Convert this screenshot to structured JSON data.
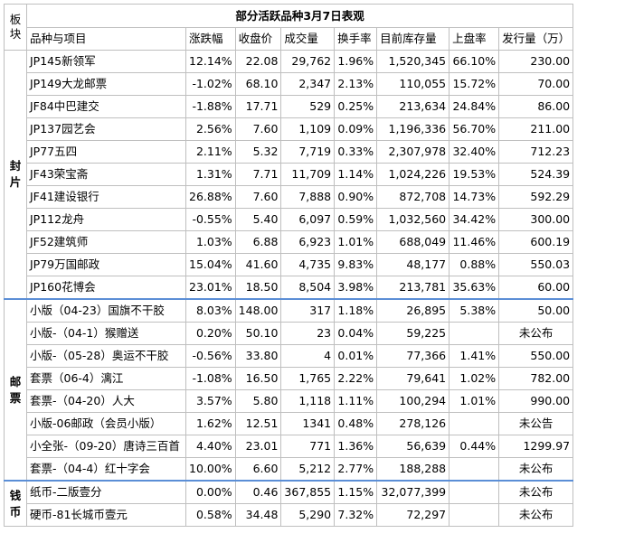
{
  "title": "部分活跃品种3月7日表观",
  "block_header": "板块",
  "headers": [
    "品种与项目",
    "涨跌幅",
    "收盘价",
    "成交量",
    "换手率",
    "目前库存量",
    "上盘率",
    "发行量（万）"
  ],
  "groups": [
    {
      "label": "封片",
      "rows": [
        {
          "name": "JP145新领军",
          "change": "12.14%",
          "dir": "pos",
          "close": "22.08",
          "volume": "29,762",
          "turnover": "1.96%",
          "stock": "1,520,345",
          "rate": "66.10%",
          "issue": "230.00"
        },
        {
          "name": "JP149大龙邮票",
          "change": "-1.02%",
          "dir": "neg",
          "close": "68.10",
          "volume": "2,347",
          "turnover": "2.13%",
          "stock": "110,055",
          "rate": "15.72%",
          "issue": "70.00"
        },
        {
          "name": "JF84中巴建交",
          "change": "-1.88%",
          "dir": "neg",
          "close": "17.71",
          "volume": "529",
          "turnover": "0.25%",
          "stock": "213,634",
          "rate": "24.84%",
          "issue": "86.00"
        },
        {
          "name": "JP137园艺会",
          "change": "2.56%",
          "dir": "pos",
          "close": "7.60",
          "volume": "1,109",
          "turnover": "0.09%",
          "stock": "1,196,336",
          "rate": "56.70%",
          "issue": "211.00"
        },
        {
          "name": "JP77五四",
          "change": "2.11%",
          "dir": "pos",
          "close": "5.32",
          "volume": "7,719",
          "turnover": "0.33%",
          "stock": "2,307,978",
          "rate": "32.40%",
          "issue": "712.23"
        },
        {
          "name": "JF43荣宝斋",
          "change": "1.31%",
          "dir": "pos",
          "close": "7.71",
          "volume": "11,709",
          "turnover": "1.14%",
          "stock": "1,024,226",
          "rate": "19.53%",
          "issue": "524.39"
        },
        {
          "name": "JF41建设银行",
          "change": "26.88%",
          "dir": "pos",
          "close": "7.60",
          "volume": "7,888",
          "turnover": "0.90%",
          "stock": "872,708",
          "rate": "14.73%",
          "issue": "592.29"
        },
        {
          "name": "JP112龙舟",
          "change": "-0.55%",
          "dir": "neg",
          "close": "5.40",
          "volume": "6,097",
          "turnover": "0.59%",
          "stock": "1,032,560",
          "rate": "34.42%",
          "issue": "300.00"
        },
        {
          "name": "JF52建筑师",
          "change": "1.03%",
          "dir": "pos",
          "close": "6.88",
          "volume": "6,923",
          "turnover": "1.01%",
          "stock": "688,049",
          "rate": "11.46%",
          "issue": "600.19"
        },
        {
          "name": "JP79万国邮政",
          "change": "15.04%",
          "dir": "pos",
          "close": "41.60",
          "volume": "4,735",
          "turnover": "9.83%",
          "stock": "48,177",
          "rate": "0.88%",
          "issue": "550.03"
        },
        {
          "name": "JP160花博会",
          "change": "23.01%",
          "dir": "pos",
          "close": "18.50",
          "volume": "8,504",
          "turnover": "3.98%",
          "stock": "213,781",
          "rate": "35.63%",
          "issue": "60.00"
        }
      ]
    },
    {
      "label": "邮票",
      "rows": [
        {
          "name": "小版（04-23）国旗不干胶",
          "change": "8.03%",
          "dir": "pos",
          "close": "148.00",
          "volume": "317",
          "turnover": "1.18%",
          "stock": "26,895",
          "rate": "5.38%",
          "issue": "50.00"
        },
        {
          "name": "小版-（04-1）猴赠送",
          "change": "0.20%",
          "dir": "pos",
          "close": "50.10",
          "volume": "23",
          "turnover": "0.04%",
          "stock": "59,225",
          "rate": "",
          "issue": "未公布"
        },
        {
          "name": "小版-（05-28）奥运不干胶",
          "change": "-0.56%",
          "dir": "neg",
          "close": "33.80",
          "volume": "4",
          "turnover": "0.01%",
          "stock": "77,366",
          "rate": "1.41%",
          "issue": "550.00",
          "small": true
        },
        {
          "name": "套票（06-4）漓江",
          "change": "-1.08%",
          "dir": "neg",
          "close": "16.50",
          "volume": "1,765",
          "turnover": "2.22%",
          "stock": "79,641",
          "rate": "1.02%",
          "issue": "782.00"
        },
        {
          "name": "套票-（04-20）人大",
          "change": "3.57%",
          "dir": "pos",
          "close": "5.80",
          "volume": "1,118",
          "turnover": "1.11%",
          "stock": "100,294",
          "rate": "1.01%",
          "issue": "990.00"
        },
        {
          "name": "小版-06邮政（会员小版）",
          "change": "1.62%",
          "dir": "pos",
          "close": "12.51",
          "volume": "1341",
          "turnover": "0.48%",
          "stock": "278,126",
          "rate": "",
          "issue": "未公告"
        },
        {
          "name": "小全张-（09-20）唐诗三百首",
          "change": "4.40%",
          "dir": "pos",
          "close": "23.01",
          "volume": "771",
          "turnover": "1.36%",
          "stock": "56,639",
          "rate": "0.44%",
          "issue": "1299.97",
          "small": true
        },
        {
          "name": "套票-（04-4）红十字会",
          "change": "10.00%",
          "dir": "pos",
          "close": "6.60",
          "volume": "5,212",
          "turnover": "2.77%",
          "stock": "188,288",
          "rate": "",
          "issue": "未公布"
        }
      ]
    },
    {
      "label": "钱币",
      "rows": [
        {
          "name": "纸币-二版壹分",
          "change": "0.00%",
          "dir": "zero",
          "close": "0.46",
          "volume": "367,855",
          "turnover": "1.15%",
          "stock": "32,077,399",
          "rate": "",
          "issue": "未公布"
        },
        {
          "name": "硬币-81长城币壹元",
          "change": "0.58%",
          "dir": "pos",
          "close": "34.48",
          "volume": "5,290",
          "turnover": "7.32%",
          "stock": "72,297",
          "rate": "",
          "issue": "未公布"
        }
      ]
    }
  ]
}
